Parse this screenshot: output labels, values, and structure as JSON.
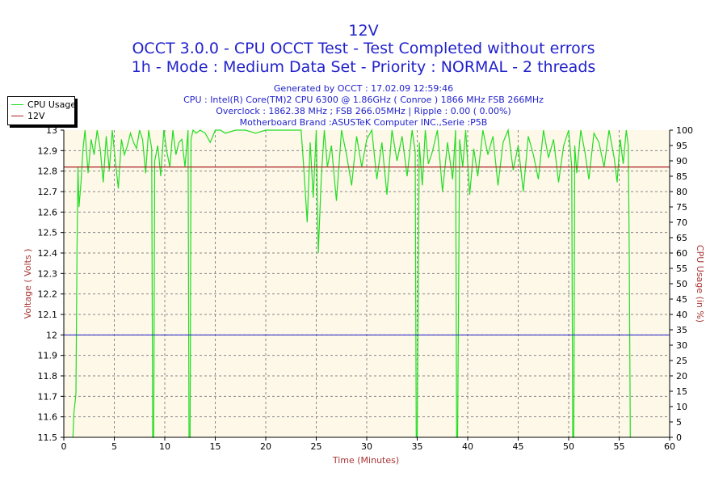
{
  "chart_data": {
    "type": "line",
    "title": "12V",
    "subtitle_1": "OCCT 3.0.0 - CPU OCCT Test - Test Completed without errors",
    "subtitle_2": "1h - Mode : Medium Data Set - Priority : NORMAL - 2 threads",
    "info_lines": [
      "Generated by OCCT : 17.02.09 12:59:46",
      "CPU : Intel(R) Core(TM)2 CPU 6300 @ 1.86GHz ( Conroe ) 1866 MHz FSB 266MHz",
      "Overclock : 1862.38 MHz ; FSB 266.05MHz | Ripple : 0.00 ( 0.00%)",
      "Motherboard Brand :ASUSTeK Computer INC.,Serie :P5B"
    ],
    "xlabel": "Time (Minutes)",
    "ylabel": "Voltage ( Volts )",
    "y2label": "CPU Usage (in %)",
    "xlim": [
      0,
      60
    ],
    "ylim": [
      11.5,
      13
    ],
    "y2lim": [
      0,
      100
    ],
    "xticks": [
      "0",
      "5",
      "10",
      "15",
      "20",
      "25",
      "30",
      "35",
      "40",
      "45",
      "50",
      "55",
      "60"
    ],
    "yticks": [
      "11.5",
      "11.6",
      "11.7",
      "11.8",
      "11.9",
      "12",
      "12.1",
      "12.2",
      "12.3",
      "12.4",
      "12.5",
      "12.6",
      "12.7",
      "12.8",
      "12.9",
      "13"
    ],
    "y2ticks": [
      "0",
      "5",
      "10",
      "15",
      "20",
      "25",
      "30",
      "35",
      "40",
      "45",
      "50",
      "55",
      "60",
      "65",
      "70",
      "75",
      "80",
      "85",
      "90",
      "95",
      "100"
    ],
    "grid": true,
    "legend_position": "top-left",
    "colors": {
      "cpu_usage": "#22dd22",
      "v12": "#aa2222",
      "reference": "#2222cc",
      "title": "#2222cc",
      "axis_label": "#aa3333",
      "plot_bg": "#fdf8e8"
    },
    "reference_line_y": 12.0,
    "series": [
      {
        "name": "CPU Usage",
        "axis": "y2",
        "x": [
          0.9,
          1.0,
          1.2,
          1.3,
          1.4,
          1.5,
          1.7,
          1.9,
          2.1,
          2.4,
          2.7,
          3.0,
          3.3,
          3.6,
          3.9,
          4.2,
          4.5,
          4.8,
          5.1,
          5.4,
          5.7,
          6.0,
          6.3,
          6.6,
          6.9,
          7.2,
          7.5,
          7.8,
          8.1,
          8.4,
          8.7,
          8.8,
          8.9,
          9.0,
          9.3,
          9.6,
          9.9,
          10.2,
          10.5,
          10.8,
          11.1,
          11.4,
          11.7,
          12.0,
          12.3,
          12.4,
          12.5,
          12.6,
          12.8,
          13.1,
          13.5,
          14.0,
          14.5,
          15.0,
          15.5,
          16.0,
          17.0,
          18.0,
          19.0,
          20.0,
          21.0,
          22.0,
          23.0,
          23.5,
          23.8,
          24.1,
          24.4,
          24.7,
          25.0,
          25.2,
          25.5,
          25.8,
          26.1,
          26.5,
          27.0,
          27.5,
          28.0,
          28.5,
          29.0,
          29.5,
          30.0,
          30.5,
          31.0,
          31.5,
          32.0,
          32.5,
          33.0,
          33.5,
          34.0,
          34.5,
          34.8,
          34.9,
          35.0,
          35.2,
          35.5,
          35.8,
          36.1,
          36.5,
          37.0,
          37.5,
          38.0,
          38.5,
          38.8,
          38.9,
          39.0,
          39.2,
          39.5,
          39.8,
          40.2,
          40.6,
          41.0,
          41.5,
          42.0,
          42.5,
          43.0,
          43.5,
          44.0,
          44.5,
          45.0,
          45.5,
          46.0,
          46.5,
          47.0,
          47.5,
          48.0,
          48.5,
          49.0,
          49.5,
          50.0,
          50.3,
          50.4,
          50.5,
          50.6,
          50.8,
          51.2,
          51.6,
          52.0,
          52.5,
          53.0,
          53.5,
          54.0,
          54.5,
          54.8,
          55.1,
          55.4,
          55.7,
          55.9,
          56.0,
          56.1,
          56.2
        ],
        "values": [
          0,
          8,
          14,
          60,
          88,
          75,
          83,
          94,
          100,
          86,
          97,
          92,
          100,
          94,
          83,
          98,
          87,
          100,
          90,
          81,
          97,
          92,
          95,
          99,
          96,
          94,
          100,
          97,
          86,
          100,
          94,
          0,
          0,
          90,
          95,
          85,
          100,
          93,
          88,
          100,
          92,
          96,
          97,
          88,
          100,
          0,
          0,
          97,
          100,
          99,
          100,
          99,
          96,
          100,
          100,
          99,
          100,
          100,
          99,
          100,
          100,
          100,
          100,
          100,
          86,
          70,
          96,
          78,
          100,
          60,
          85,
          100,
          88,
          95,
          77,
          100,
          92,
          82,
          98,
          88,
          97,
          100,
          84,
          96,
          79,
          100,
          90,
          98,
          85,
          100,
          93,
          0,
          0,
          96,
          82,
          100,
          89,
          93,
          100,
          80,
          96,
          84,
          100,
          0,
          0,
          97,
          88,
          100,
          79,
          94,
          85,
          100,
          92,
          98,
          82,
          96,
          100,
          87,
          95,
          80,
          98,
          92,
          84,
          100,
          91,
          97,
          83,
          95,
          100,
          88,
          0,
          0,
          95,
          86,
          100,
          93,
          84,
          99,
          96,
          88,
          100,
          91,
          83,
          97,
          89,
          100,
          95,
          60,
          0,
          0
        ]
      },
      {
        "name": "12V",
        "axis": "y",
        "x": [
          0,
          60
        ],
        "values": [
          12.82,
          12.82
        ]
      }
    ]
  }
}
